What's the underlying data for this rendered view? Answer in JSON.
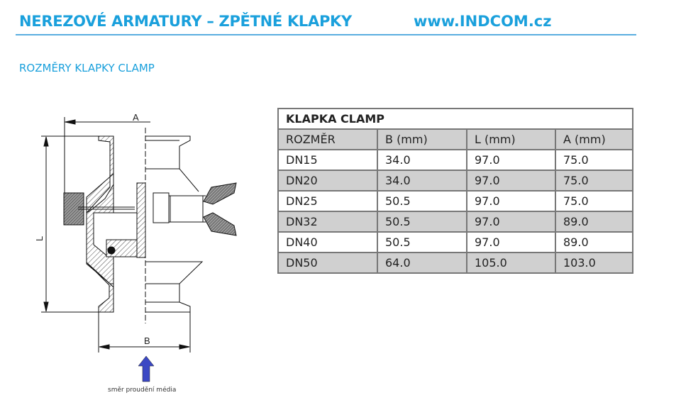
{
  "header": {
    "title": "NEREZOVÉ ARMATURY – ZPĚTNÉ KLAPKY",
    "website": "www.INDCOM.cz"
  },
  "section_title": "ROZMĚRY KLAPKY CLAMP",
  "drawing": {
    "label_a": "A",
    "label_b": "B",
    "label_l": "L",
    "flow_caption": "směr proudění média",
    "flow_arrow_color": "#3b48c4"
  },
  "table": {
    "title": "KLAPKA CLAMP",
    "columns": [
      "ROZMĚR",
      "B (mm)",
      "L (mm)",
      "A (mm)"
    ],
    "rows": [
      [
        "DN15",
        "34.0",
        "97.0",
        "75.0"
      ],
      [
        "DN20",
        "34.0",
        "97.0",
        "75.0"
      ],
      [
        "DN25",
        "50.5",
        "97.0",
        "75.0"
      ],
      [
        "DN32",
        "50.5",
        "97.0",
        "89.0"
      ],
      [
        "DN40",
        "50.5",
        "97.0",
        "89.0"
      ],
      [
        "DN50",
        "64.0",
        "105.0",
        "103.0"
      ]
    ]
  },
  "colors": {
    "accent": "#1aa0dc",
    "row_shade": "#d0d0d0"
  }
}
